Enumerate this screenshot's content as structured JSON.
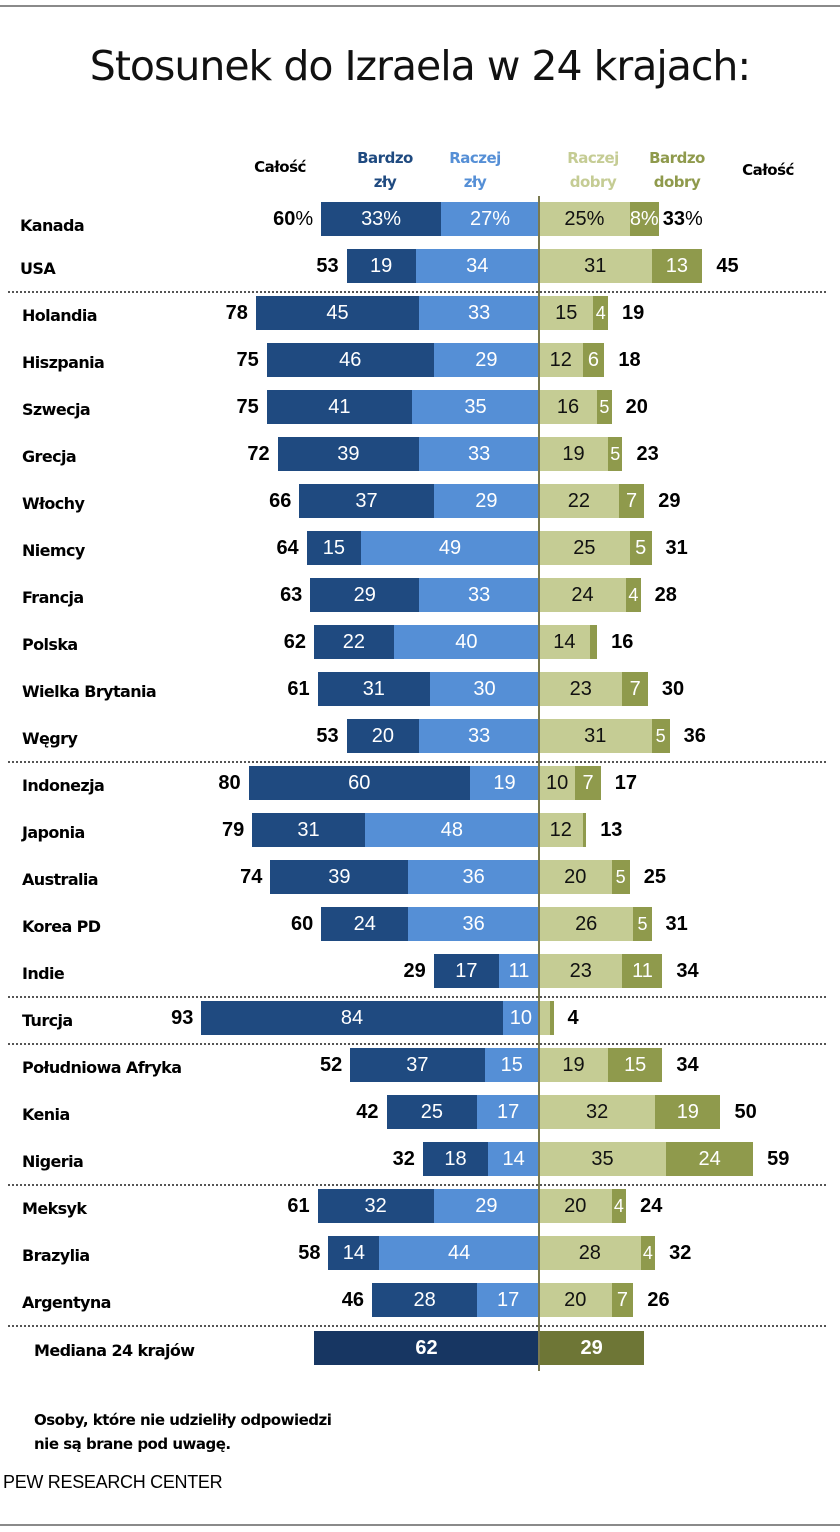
{
  "title": "Stosunek do Izraela w 24 krajach:",
  "colors": {
    "very_unfavorable": "#1f4a80",
    "somewhat_unfavorable": "#558fd6",
    "somewhat_favorable": "#c5cc94",
    "very_favorable": "#8f9a4c",
    "median_unfavorable": "#173662",
    "median_favorable": "#6e7636",
    "axis": "#7a7a50"
  },
  "headers": {
    "total_left": "Całość",
    "very_unfavorable": [
      "Bardzo",
      "zły"
    ],
    "somewhat_unfavorable": [
      "Raczej",
      "zły"
    ],
    "somewhat_favorable": [
      "Raczej",
      "dobry"
    ],
    "very_favorable": [
      "Bardzo",
      "dobry"
    ],
    "total_right": "Całość"
  },
  "chart_data": {
    "type": "bar",
    "subtype": "diverging-stacked-horizontal",
    "title": "Stosunek do Izraela w 24 krajach:",
    "unit": "%",
    "series": [
      {
        "name": "Bardzo zły",
        "side": "left"
      },
      {
        "name": "Raczej zły",
        "side": "left"
      },
      {
        "name": "Raczej dobry",
        "side": "right"
      },
      {
        "name": "Bardzo dobry",
        "side": "right"
      }
    ],
    "groups": [
      [
        "Kanada",
        "USA"
      ],
      [
        "Holandia",
        "Hiszpania",
        "Szwecja",
        "Grecja",
        "Włochy",
        "Niemcy",
        "Francja",
        "Polska",
        "Wielka Brytania",
        "Węgry"
      ],
      [
        "Indonezja",
        "Japonia",
        "Australia",
        "Korea PD",
        "Indie"
      ],
      [
        "Turcja"
      ],
      [
        "Południowa Afryka",
        "Kenia",
        "Nigeria"
      ],
      [
        "Meksyk",
        "Brazylia",
        "Argentyna"
      ]
    ],
    "rows": [
      {
        "country": "Kanada",
        "very_unfav": 33,
        "some_unfav": 27,
        "unfav_total": 60,
        "some_fav": 25,
        "very_fav": 8,
        "fav_total": 33,
        "show_pct": true
      },
      {
        "country": "USA",
        "very_unfav": 19,
        "some_unfav": 34,
        "unfav_total": 53,
        "some_fav": 31,
        "very_fav": 13,
        "fav_total": 45
      },
      {
        "country": "Holandia",
        "very_unfav": 45,
        "some_unfav": 33,
        "unfav_total": 78,
        "some_fav": 15,
        "very_fav": 4,
        "fav_total": 19
      },
      {
        "country": "Hiszpania",
        "very_unfav": 46,
        "some_unfav": 29,
        "unfav_total": 75,
        "some_fav": 12,
        "very_fav": 6,
        "fav_total": 18
      },
      {
        "country": "Szwecja",
        "very_unfav": 41,
        "some_unfav": 35,
        "unfav_total": 75,
        "some_fav": 16,
        "very_fav": 5,
        "fav_total": 20
      },
      {
        "country": "Grecja",
        "very_unfav": 39,
        "some_unfav": 33,
        "unfav_total": 72,
        "some_fav": 19,
        "very_fav": 5,
        "fav_total": 23
      },
      {
        "country": "Włochy",
        "very_unfav": 37,
        "some_unfav": 29,
        "unfav_total": 66,
        "some_fav": 22,
        "very_fav": 7,
        "fav_total": 29
      },
      {
        "country": "Niemcy",
        "very_unfav": 15,
        "some_unfav": 49,
        "unfav_total": 64,
        "some_fav": 25,
        "very_fav": 5,
        "fav_total": 31
      },
      {
        "country": "Francja",
        "very_unfav": 29,
        "some_unfav": 33,
        "unfav_total": 63,
        "some_fav": 24,
        "very_fav": 4,
        "fav_total": 28
      },
      {
        "country": "Polska",
        "very_unfav": 22,
        "some_unfav": 40,
        "unfav_total": 62,
        "some_fav": 14,
        "very_fav": 2,
        "very_fav_label": "",
        "fav_total": 16
      },
      {
        "country": "Wielka Brytania",
        "very_unfav": 31,
        "some_unfav": 30,
        "unfav_total": 61,
        "some_fav": 23,
        "very_fav": 7,
        "fav_total": 30
      },
      {
        "country": "Węgry",
        "very_unfav": 20,
        "some_unfav": 33,
        "unfav_total": 53,
        "some_fav": 31,
        "very_fav": 5,
        "fav_total": 36
      },
      {
        "country": "Indonezja",
        "very_unfav": 60,
        "some_unfav": 19,
        "unfav_total": 80,
        "some_fav": 10,
        "very_fav": 7,
        "fav_total": 17
      },
      {
        "country": "Japonia",
        "very_unfav": 31,
        "some_unfav": 48,
        "unfav_total": 79,
        "some_fav": 12,
        "very_fav": 1,
        "very_fav_label": "",
        "fav_total": 13
      },
      {
        "country": "Australia",
        "very_unfav": 39,
        "some_unfav": 36,
        "unfav_total": 74,
        "some_fav": 20,
        "very_fav": 5,
        "fav_total": 25
      },
      {
        "country": "Korea PD",
        "very_unfav": 24,
        "some_unfav": 36,
        "unfav_total": 60,
        "some_fav": 26,
        "very_fav": 5,
        "fav_total": 31
      },
      {
        "country": "Indie",
        "very_unfav": 17,
        "some_unfav": 11,
        "unfav_total": 29,
        "some_fav": 23,
        "very_fav": 11,
        "fav_total": 34
      },
      {
        "country": "Turcja",
        "very_unfav": 84,
        "some_unfav": 10,
        "unfav_total": 93,
        "some_fav": 3,
        "some_fav_label": "",
        "very_fav": 1,
        "very_fav_label": "",
        "fav_total": 4
      },
      {
        "country": "Południowa Afryka",
        "very_unfav": 37,
        "some_unfav": 15,
        "unfav_total": 52,
        "some_fav": 19,
        "very_fav": 15,
        "fav_total": 34
      },
      {
        "country": "Kenia",
        "very_unfav": 25,
        "some_unfav": 17,
        "unfav_total": 42,
        "some_fav": 32,
        "very_fav": 19,
        "fav_total": 50
      },
      {
        "country": "Nigeria",
        "very_unfav": 18,
        "some_unfav": 14,
        "unfav_total": 32,
        "some_fav": 35,
        "very_fav": 24,
        "fav_total": 59
      },
      {
        "country": "Meksyk",
        "very_unfav": 32,
        "some_unfav": 29,
        "unfav_total": 61,
        "some_fav": 20,
        "very_fav": 4,
        "fav_total": 24
      },
      {
        "country": "Brazylia",
        "very_unfav": 14,
        "some_unfav": 44,
        "unfav_total": 58,
        "some_fav": 28,
        "very_fav": 4,
        "fav_total": 32
      },
      {
        "country": "Argentyna",
        "very_unfav": 28,
        "some_unfav": 17,
        "unfav_total": 46,
        "some_fav": 20,
        "very_fav": 7,
        "fav_total": 26
      }
    ],
    "median": {
      "label": "Mediana 24 krajów",
      "unfav_total": 62,
      "fav_total": 29
    }
  },
  "note": [
    "Osoby, które nie udzieliły odpowiedzi",
    "nie są brane pod uwagę."
  ],
  "source": "PEW RESEARCH CENTER"
}
